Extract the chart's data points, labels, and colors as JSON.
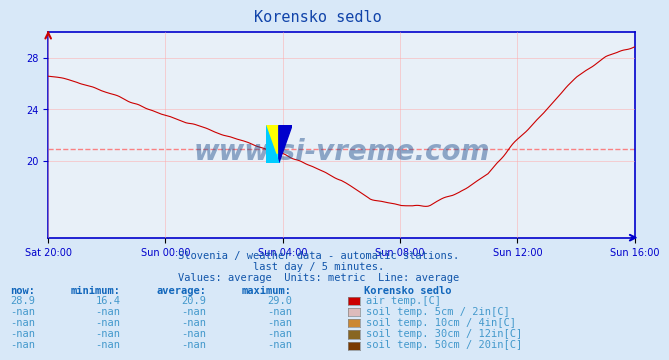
{
  "title": "Korensko sedlo",
  "title_color": "#1144aa",
  "bg_color": "#d8e8f8",
  "plot_bg_color": "#e8f0f8",
  "grid_color": "#ffaaaa",
  "axis_color": "#0000cc",
  "line_color": "#cc0000",
  "avg_line_color": "#ff6666",
  "avg_line_value": 20.9,
  "y_min": 14.0,
  "y_max": 30.0,
  "y_ticks": [
    20,
    24,
    28
  ],
  "x_labels": [
    "Sat 20:00",
    "Sun 00:00",
    "Sun 04:00",
    "Sun 08:00",
    "Sun 12:00",
    "Sun 16:00"
  ],
  "watermark": "www.si-vreme.com",
  "watermark_color": "#1a4a8a",
  "subtitle1": "Slovenia / weather data - automatic stations.",
  "subtitle2": "last day / 5 minutes.",
  "subtitle3": "Values: average  Units: metric  Line: average",
  "subtitle_color": "#1155aa",
  "table_headers": [
    "now:",
    "minimum:",
    "average:",
    "maximum:",
    "Korensko sedlo"
  ],
  "table_header_color": "#1166bb",
  "table_data": [
    [
      "28.9",
      "16.4",
      "20.9",
      "29.0",
      "air temp.[C]",
      "#cc0000"
    ],
    [
      "-nan",
      "-nan",
      "-nan",
      "-nan",
      "soil temp. 5cm / 2in[C]",
      "#ddbbbb"
    ],
    [
      "-nan",
      "-nan",
      "-nan",
      "-nan",
      "soil temp. 10cm / 4in[C]",
      "#cc8833"
    ],
    [
      "-nan",
      "-nan",
      "-nan",
      "-nan",
      "soil temp. 30cm / 12in[C]",
      "#886622"
    ],
    [
      "-nan",
      "-nan",
      "-nan",
      "-nan",
      "soil temp. 50cm / 20in[C]",
      "#7a3a00"
    ]
  ],
  "table_data_color": "#4499cc"
}
